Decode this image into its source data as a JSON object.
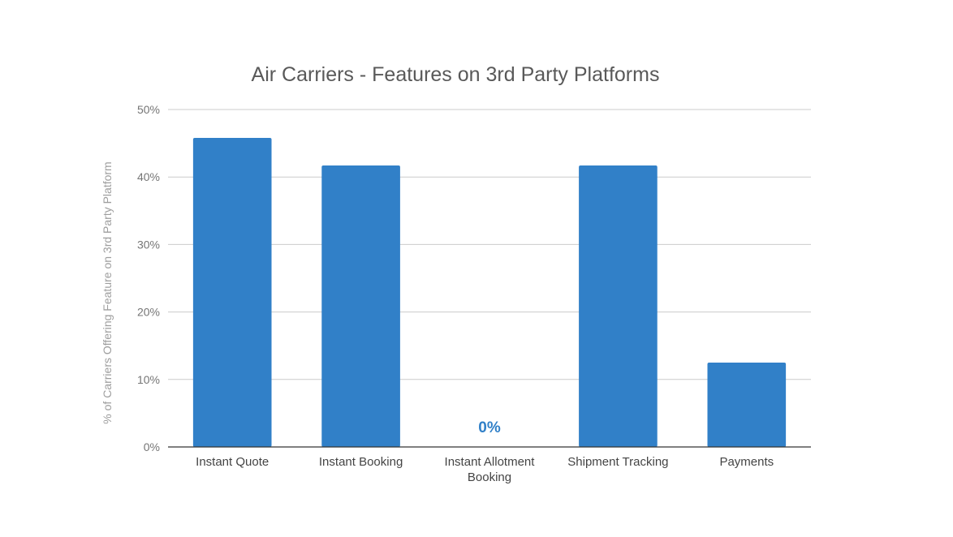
{
  "chart_data": {
    "type": "bar",
    "title": "Air Carriers - Features on 3rd Party Platforms",
    "xlabel": "",
    "ylabel": "% of Carriers Offering Feature on 3rd Party Platform",
    "categories": [
      [
        "Instant Quote"
      ],
      [
        "Instant Booking"
      ],
      [
        "Instant Allotment",
        "Booking"
      ],
      [
        "Shipment Tracking"
      ],
      [
        "Payments"
      ]
    ],
    "series": [
      {
        "values": [
          45.8,
          41.7,
          0,
          41.7,
          12.5
        ]
      }
    ],
    "ylim": [
      0,
      50
    ],
    "yticks": [
      0,
      10,
      20,
      30,
      40,
      50
    ],
    "ytick_labels": [
      "0%",
      "10%",
      "20%",
      "30%",
      "40%",
      "50%"
    ],
    "data_labels": [
      {
        "category_index": 2,
        "text": "0%"
      }
    ],
    "grid": true,
    "legend": "none",
    "colors": {
      "bar": "#3180c8",
      "grid": "#cccccc",
      "axis": "#333333",
      "data_label": "#3180c8"
    }
  }
}
